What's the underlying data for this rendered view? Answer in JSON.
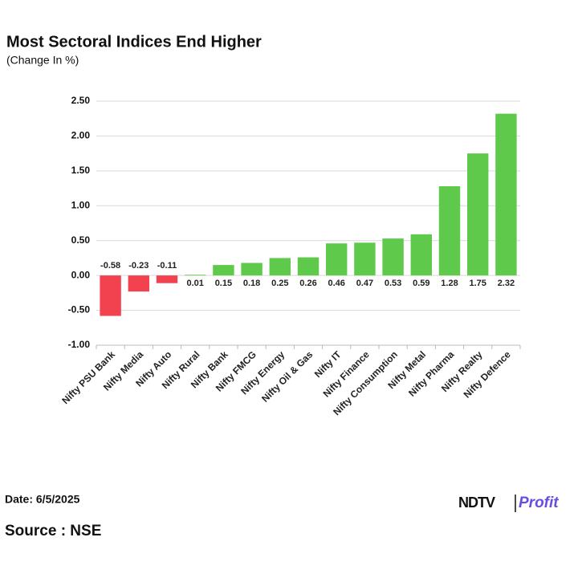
{
  "chart_data": {
    "type": "bar",
    "title": "Most Sectoral Indices End Higher",
    "subtitle": "(Change In %)",
    "categories": [
      "Nifty PSU Bank",
      "Nifty Media",
      "Nifty Auto",
      "Nifty Rural",
      "Nifty Bank",
      "Nifty FMCG",
      "Nifty Energy",
      "Nifty Oil & Gas",
      "Nifty IT",
      "Nifty Finance",
      "Nifty Consumption",
      "Nifty Metal",
      "Nifty Pharma",
      "Nifty Realty",
      "Nifty Defence"
    ],
    "values": [
      -0.58,
      -0.23,
      -0.11,
      0.01,
      0.15,
      0.18,
      0.25,
      0.26,
      0.46,
      0.47,
      0.53,
      0.59,
      1.28,
      1.75,
      2.32
    ],
    "positive_color": "#5ec94a",
    "negative_color": "#f2414f",
    "ylim": [
      -1,
      2.5
    ],
    "yticks": [
      {
        "value": 2.5,
        "label": "2.50"
      },
      {
        "value": 2,
        "label": "2.00"
      },
      {
        "value": 1.5,
        "label": "1.50"
      },
      {
        "value": 1,
        "label": "1.00"
      },
      {
        "value": 0.5,
        "label": "0.50"
      },
      {
        "value": 0,
        "label": "0.00"
      },
      {
        "value": -0.5,
        "label": "-0.50"
      },
      {
        "value": -1,
        "label": "-1.00"
      }
    ],
    "grid": true,
    "date": "Date: 6/5/2025",
    "source": "Source : NSE",
    "logo": {
      "brand": "NDTV",
      "product": "Profit"
    }
  }
}
